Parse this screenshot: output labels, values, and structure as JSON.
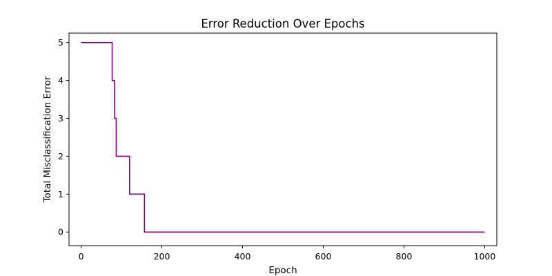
{
  "chart_data": {
    "type": "line",
    "title": "Error Reduction Over Epochs",
    "xlabel": "Epoch",
    "ylabel": "Total Misclassification Error",
    "xlim": [
      -30,
      1030
    ],
    "ylim": [
      -0.36,
      5.25
    ],
    "xticks": [
      0,
      200,
      400,
      600,
      800,
      1000
    ],
    "yticks": [
      0,
      1,
      2,
      3,
      4,
      5
    ],
    "grid": false,
    "series": [
      {
        "name": "Total Misclassification Error",
        "color": "#800080",
        "style": "step-post",
        "x": [
          0,
          77,
          83,
          87,
          120,
          157,
          1000
        ],
        "y": [
          5,
          4,
          3,
          2,
          1,
          0,
          0
        ]
      }
    ]
  }
}
